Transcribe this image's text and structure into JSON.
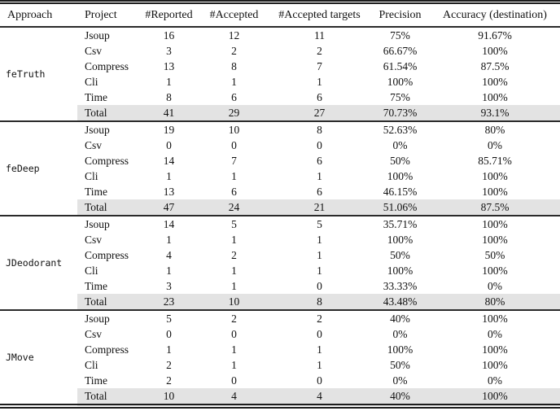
{
  "table": {
    "columns": [
      {
        "key": "approach",
        "label": "Approach",
        "align": "left"
      },
      {
        "key": "project",
        "label": "Project",
        "align": "left"
      },
      {
        "key": "reported",
        "label": "#Reported",
        "align": "center"
      },
      {
        "key": "accepted",
        "label": "#Accepted",
        "align": "center"
      },
      {
        "key": "accepted_targets",
        "label": "#Accepted targets",
        "align": "center"
      },
      {
        "key": "precision",
        "label": "Precision",
        "align": "center"
      },
      {
        "key": "accuracy",
        "label": "Accuracy (destination)",
        "align": "center"
      }
    ],
    "row_keys": [
      "project",
      "reported",
      "accepted",
      "accepted_targets",
      "precision",
      "accuracy"
    ],
    "groups": [
      {
        "approach": "feTruth",
        "rows": [
          {
            "project": "Jsoup",
            "reported": "16",
            "accepted": "12",
            "accepted_targets": "11",
            "precision": "75%",
            "accuracy": "91.67%",
            "total": false
          },
          {
            "project": "Csv",
            "reported": "3",
            "accepted": "2",
            "accepted_targets": "2",
            "precision": "66.67%",
            "accuracy": "100%",
            "total": false
          },
          {
            "project": "Compress",
            "reported": "13",
            "accepted": "8",
            "accepted_targets": "7",
            "precision": "61.54%",
            "accuracy": "87.5%",
            "total": false
          },
          {
            "project": "Cli",
            "reported": "1",
            "accepted": "1",
            "accepted_targets": "1",
            "precision": "100%",
            "accuracy": "100%",
            "total": false
          },
          {
            "project": "Time",
            "reported": "8",
            "accepted": "6",
            "accepted_targets": "6",
            "precision": "75%",
            "accuracy": "100%",
            "total": false
          },
          {
            "project": "Total",
            "reported": "41",
            "accepted": "29",
            "accepted_targets": "27",
            "precision": "70.73%",
            "accuracy": "93.1%",
            "total": true
          }
        ]
      },
      {
        "approach": "feDeep",
        "rows": [
          {
            "project": "Jsoup",
            "reported": "19",
            "accepted": "10",
            "accepted_targets": "8",
            "precision": "52.63%",
            "accuracy": "80%",
            "total": false
          },
          {
            "project": "Csv",
            "reported": "0",
            "accepted": "0",
            "accepted_targets": "0",
            "precision": "0%",
            "accuracy": "0%",
            "total": false
          },
          {
            "project": "Compress",
            "reported": "14",
            "accepted": "7",
            "accepted_targets": "6",
            "precision": "50%",
            "accuracy": "85.71%",
            "total": false
          },
          {
            "project": "Cli",
            "reported": "1",
            "accepted": "1",
            "accepted_targets": "1",
            "precision": "100%",
            "accuracy": "100%",
            "total": false
          },
          {
            "project": "Time",
            "reported": "13",
            "accepted": "6",
            "accepted_targets": "6",
            "precision": "46.15%",
            "accuracy": "100%",
            "total": false
          },
          {
            "project": "Total",
            "reported": "47",
            "accepted": "24",
            "accepted_targets": "21",
            "precision": "51.06%",
            "accuracy": "87.5%",
            "total": true
          }
        ]
      },
      {
        "approach": "JDeodorant",
        "rows": [
          {
            "project": "Jsoup",
            "reported": "14",
            "accepted": "5",
            "accepted_targets": "5",
            "precision": "35.71%",
            "accuracy": "100%",
            "total": false
          },
          {
            "project": "Csv",
            "reported": "1",
            "accepted": "1",
            "accepted_targets": "1",
            "precision": "100%",
            "accuracy": "100%",
            "total": false
          },
          {
            "project": "Compress",
            "reported": "4",
            "accepted": "2",
            "accepted_targets": "1",
            "precision": "50%",
            "accuracy": "50%",
            "total": false
          },
          {
            "project": "Cli",
            "reported": "1",
            "accepted": "1",
            "accepted_targets": "1",
            "precision": "100%",
            "accuracy": "100%",
            "total": false
          },
          {
            "project": "Time",
            "reported": "3",
            "accepted": "1",
            "accepted_targets": "0",
            "precision": "33.33%",
            "accuracy": "0%",
            "total": false
          },
          {
            "project": "Total",
            "reported": "23",
            "accepted": "10",
            "accepted_targets": "8",
            "precision": "43.48%",
            "accuracy": "80%",
            "total": true
          }
        ]
      },
      {
        "approach": "JMove",
        "rows": [
          {
            "project": "Jsoup",
            "reported": "5",
            "accepted": "2",
            "accepted_targets": "2",
            "precision": "40%",
            "accuracy": "100%",
            "total": false
          },
          {
            "project": "Csv",
            "reported": "0",
            "accepted": "0",
            "accepted_targets": "0",
            "precision": "0%",
            "accuracy": "0%",
            "total": false
          },
          {
            "project": "Compress",
            "reported": "1",
            "accepted": "1",
            "accepted_targets": "1",
            "precision": "100%",
            "accuracy": "100%",
            "total": false
          },
          {
            "project": "Cli",
            "reported": "2",
            "accepted": "1",
            "accepted_targets": "1",
            "precision": "50%",
            "accuracy": "100%",
            "total": false
          },
          {
            "project": "Time",
            "reported": "2",
            "accepted": "0",
            "accepted_targets": "0",
            "precision": "0%",
            "accuracy": "0%",
            "total": false
          },
          {
            "project": "Total",
            "reported": "10",
            "accepted": "4",
            "accepted_targets": "4",
            "precision": "40%",
            "accuracy": "100%",
            "total": true
          }
        ]
      }
    ]
  },
  "colors": {
    "total_row_bg": "#e3e3e3",
    "rule": "#1c1c1c",
    "text": "#111111"
  }
}
